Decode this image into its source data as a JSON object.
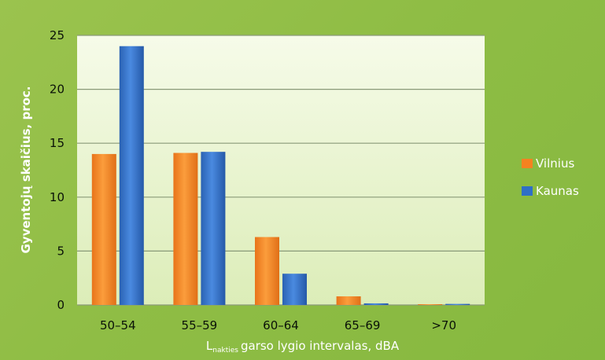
{
  "chart_data": {
    "type": "bar",
    "categories": [
      "50–54",
      "55–59",
      "60–64",
      "65–69",
      ">70"
    ],
    "series": [
      {
        "name": "Vilnius",
        "values": [
          14,
          14.1,
          6.3,
          0.8,
          0.05
        ],
        "color": "#f58220"
      },
      {
        "name": "Kaunas",
        "values": [
          24,
          14.2,
          2.9,
          0.15,
          0.1
        ],
        "color": "#2f6fc7"
      }
    ],
    "ylabel": "Gyventojų skaičius, proc.",
    "xlabel_main": "L",
    "xlabel_sub": "nakties",
    "xlabel_rest": "garso lygio intervalas, dBA",
    "ylim": [
      0,
      25
    ],
    "yticks": [
      0,
      5,
      10,
      15,
      20,
      25
    ],
    "grid": true,
    "legend_position": "right"
  }
}
